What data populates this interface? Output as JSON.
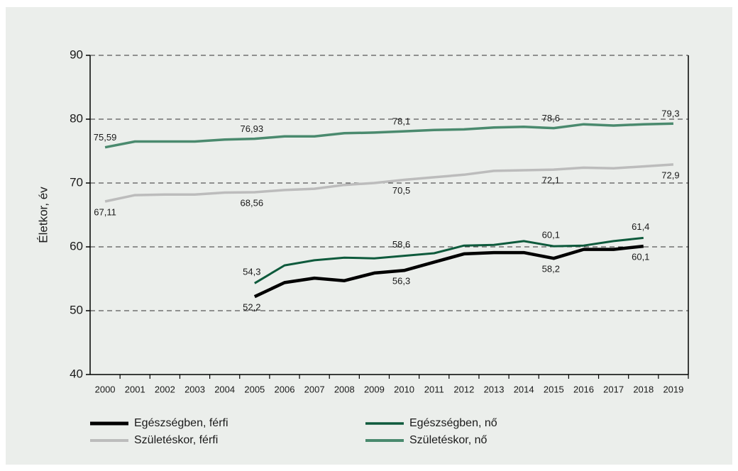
{
  "chart_data": {
    "type": "line",
    "y_label": "Életkor, év",
    "categories": [
      "2000",
      "2001",
      "2002",
      "2003",
      "2004",
      "2005",
      "2006",
      "2007",
      "2008",
      "2009",
      "2010",
      "2011",
      "2012",
      "2013",
      "2014",
      "2015",
      "2016",
      "2017",
      "2018",
      "2019"
    ],
    "ylim": [
      40,
      90
    ],
    "yticks": [
      40,
      50,
      60,
      70,
      80,
      90
    ],
    "grid": true,
    "legend": "bottom",
    "series": [
      {
        "name": "Egészségben, férfi",
        "color": "#000000",
        "values": [
          null,
          null,
          null,
          null,
          null,
          52.2,
          54.4,
          55.1,
          54.7,
          55.9,
          56.3,
          57.6,
          58.9,
          59.1,
          59.1,
          58.2,
          59.6,
          59.6,
          60.1,
          null
        ],
        "value_labels": [
          null,
          null,
          null,
          null,
          null,
          "52,2",
          null,
          null,
          null,
          null,
          "56,3",
          null,
          null,
          null,
          null,
          "58,2",
          null,
          null,
          "60,1",
          null
        ]
      },
      {
        "name": "Egészségben, nő",
        "color": "#0e5a3c",
        "values": [
          null,
          null,
          null,
          null,
          null,
          54.3,
          57.1,
          57.9,
          58.3,
          58.2,
          58.6,
          59.0,
          60.2,
          60.3,
          60.9,
          60.1,
          60.2,
          60.9,
          61.4,
          null
        ],
        "value_labels": [
          null,
          null,
          null,
          null,
          null,
          "54,3",
          null,
          null,
          null,
          null,
          "58,6",
          null,
          null,
          null,
          null,
          "60,1",
          null,
          null,
          "61,4",
          null
        ]
      },
      {
        "name": "Születéskor, férfi",
        "color": "#bcbcbc",
        "values": [
          67.11,
          68.1,
          68.2,
          68.2,
          68.5,
          68.56,
          68.9,
          69.1,
          69.7,
          70.0,
          70.5,
          70.9,
          71.3,
          71.9,
          72.0,
          72.1,
          72.4,
          72.3,
          72.6,
          72.9
        ],
        "value_labels": [
          "67,11",
          null,
          null,
          null,
          null,
          "68,56",
          null,
          null,
          null,
          null,
          "70,5",
          null,
          null,
          null,
          null,
          "72,1",
          null,
          null,
          null,
          "72,9"
        ]
      },
      {
        "name": "Születéskor, nő",
        "color": "#4a8a6e",
        "values": [
          75.59,
          76.5,
          76.5,
          76.5,
          76.8,
          76.93,
          77.3,
          77.3,
          77.8,
          77.9,
          78.1,
          78.3,
          78.4,
          78.7,
          78.8,
          78.6,
          79.2,
          79.0,
          79.2,
          79.3
        ],
        "value_labels": [
          "75,59",
          null,
          null,
          null,
          null,
          "76,93",
          null,
          null,
          null,
          null,
          "78,1",
          null,
          null,
          null,
          null,
          "78,6",
          null,
          null,
          null,
          "79,3"
        ]
      }
    ]
  }
}
